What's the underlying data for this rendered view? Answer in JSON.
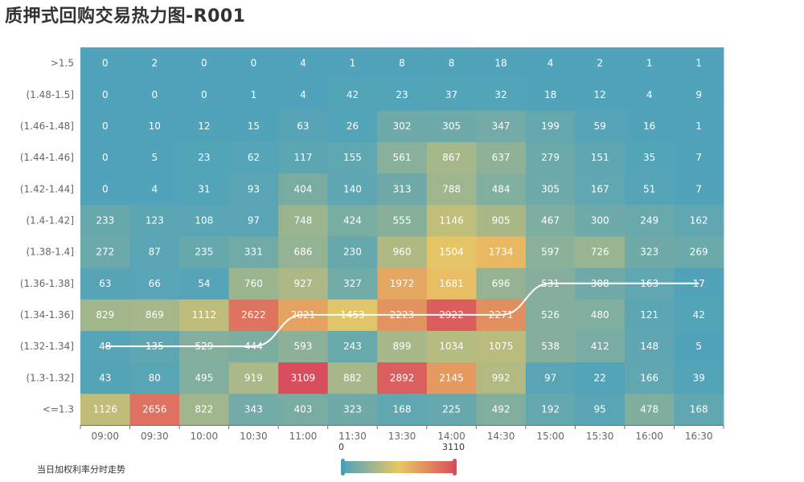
{
  "title": "质押式回购交易热力图-R001",
  "colors": {
    "low": "#50a3ba",
    "mid": "#eac763",
    "high": "#d94e5d",
    "line": "#ffffff"
  },
  "visual_map": {
    "min_label": "0",
    "max_label": "3110",
    "min": 0,
    "max": 3110
  },
  "legend": {
    "line_label": "当日加权利率分时走势"
  },
  "chart_data": {
    "type": "heatmap",
    "x_categories": [
      "09:00",
      "09:30",
      "10:00",
      "10:30",
      "11:00",
      "11:30",
      "13:30",
      "14:00",
      "14:30",
      "15:00",
      "15:30",
      "16:00",
      "16:30"
    ],
    "y_categories": [
      "<=1.3",
      "(1.3-1.32]",
      "(1.32-1.34]",
      "(1.34-1.36]",
      "(1.36-1.38]",
      "(1.38-1.4]",
      "(1.4-1.42]",
      "(1.42-1.44]",
      "(1.44-1.46]",
      "(1.46-1.48]",
      "(1.48-1.5]",
      ">1.5"
    ],
    "rows": [
      {
        "y": "<=1.3",
        "values": [
          1126,
          2656,
          822,
          343,
          403,
          323,
          168,
          225,
          492,
          192,
          95,
          478,
          168
        ]
      },
      {
        "y": "(1.3-1.32]",
        "values": [
          43,
          80,
          495,
          919,
          3109,
          882,
          2892,
          2145,
          992,
          97,
          22,
          166,
          39
        ]
      },
      {
        "y": "(1.32-1.34]",
        "values": [
          48,
          135,
          529,
          444,
          593,
          243,
          899,
          1034,
          1075,
          538,
          412,
          148,
          5
        ]
      },
      {
        "y": "(1.34-1.36]",
        "values": [
          829,
          869,
          1112,
          2622,
          2021,
          1453,
          2223,
          2922,
          2271,
          526,
          480,
          121,
          42
        ]
      },
      {
        "y": "(1.36-1.38]",
        "values": [
          63,
          66,
          54,
          760,
          927,
          327,
          1972,
          1681,
          696,
          531,
          308,
          163,
          17
        ]
      },
      {
        "y": "(1.38-1.4]",
        "values": [
          272,
          87,
          235,
          331,
          686,
          230,
          960,
          1504,
          1734,
          597,
          726,
          323,
          269
        ]
      },
      {
        "y": "(1.4-1.42]",
        "values": [
          233,
          123,
          108,
          97,
          748,
          424,
          555,
          1146,
          905,
          467,
          300,
          249,
          162
        ]
      },
      {
        "y": "(1.42-1.44]",
        "values": [
          0,
          4,
          31,
          93,
          404,
          140,
          313,
          788,
          484,
          305,
          167,
          51,
          7
        ]
      },
      {
        "y": "(1.44-1.46]",
        "values": [
          0,
          5,
          23,
          62,
          117,
          155,
          561,
          867,
          637,
          279,
          151,
          35,
          7
        ]
      },
      {
        "y": "(1.46-1.48]",
        "values": [
          0,
          10,
          12,
          15,
          63,
          26,
          302,
          305,
          347,
          199,
          59,
          16,
          1
        ]
      },
      {
        "y": "(1.48-1.5]",
        "values": [
          0,
          0,
          0,
          1,
          4,
          42,
          23,
          37,
          32,
          18,
          12,
          4,
          9
        ]
      },
      {
        "y": ">1.5",
        "values": [
          0,
          2,
          0,
          0,
          4,
          1,
          8,
          8,
          18,
          4,
          2,
          1,
          1
        ]
      }
    ],
    "line_series": {
      "name": "当日加权利率分时走势",
      "values": [
        "(1.32-1.34]",
        "(1.32-1.34]",
        "(1.32-1.34]",
        "(1.32-1.34]",
        "(1.34-1.36]",
        "(1.34-1.36]",
        "(1.34-1.36]",
        "(1.34-1.36]",
        "(1.34-1.36]",
        "(1.36-1.38]",
        "(1.36-1.38]",
        "(1.36-1.38]",
        "(1.36-1.38]"
      ]
    }
  }
}
